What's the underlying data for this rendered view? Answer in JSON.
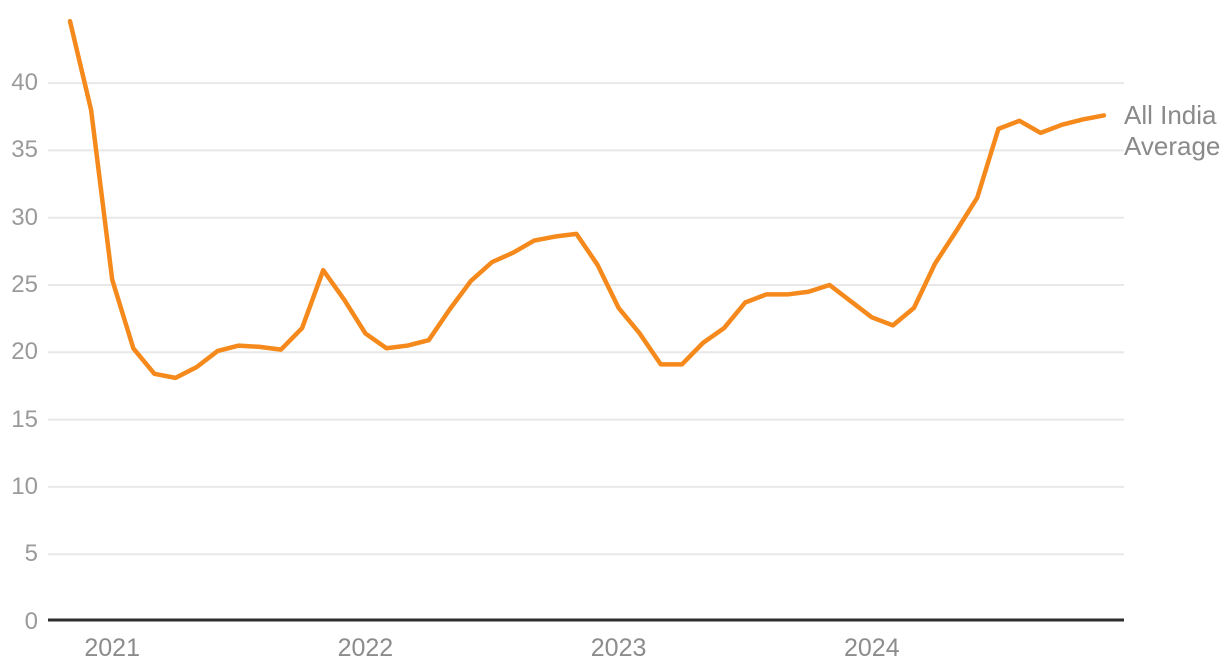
{
  "chart_data": {
    "type": "line",
    "title": "",
    "xlabel": "",
    "ylabel": "",
    "x": [
      "Nov 2020",
      "Dec 2020",
      "Jan 2021",
      "Feb 2021",
      "Mar 2021",
      "Apr 2021",
      "May 2021",
      "Jun 2021",
      "Jul 2021",
      "Aug 2021",
      "Sep 2021",
      "Oct 2021",
      "Nov 2021",
      "Dec 2021",
      "Jan 2022",
      "Feb 2022",
      "Mar 2022",
      "Apr 2022",
      "May 2022",
      "Jun 2022",
      "Jul 2022",
      "Aug 2022",
      "Sep 2022",
      "Oct 2022",
      "Nov 2022",
      "Dec 2022",
      "Jan 2023",
      "Feb 2023",
      "Mar 2023",
      "Apr 2023",
      "May 2023",
      "Jun 2023",
      "Jul 2023",
      "Aug 2023",
      "Sep 2023",
      "Oct 2023",
      "Nov 2023",
      "Dec 2023",
      "Jan 2024",
      "Feb 2024",
      "Mar 2024",
      "Apr 2024",
      "May 2024",
      "Jun 2024",
      "Jul 2024",
      "Aug 2024",
      "Sep 2024",
      "Oct 2024",
      "Nov 2024",
      "Dec 2024"
    ],
    "series": [
      {
        "name": "All India Average",
        "values": [
          44.6,
          38.0,
          25.4,
          20.3,
          18.4,
          18.1,
          18.9,
          20.1,
          20.5,
          20.4,
          20.2,
          21.8,
          26.1,
          23.9,
          21.4,
          20.3,
          20.5,
          20.9,
          23.2,
          25.3,
          26.7,
          27.4,
          28.3,
          28.6,
          28.8,
          26.5,
          23.3,
          21.4,
          19.1,
          19.1,
          20.7,
          21.8,
          23.7,
          24.3,
          24.3,
          24.5,
          25.0,
          23.8,
          22.6,
          22.0,
          23.3,
          26.6,
          29.0,
          31.5,
          36.6,
          37.2,
          36.3,
          36.9,
          37.3,
          37.6
        ]
      }
    ],
    "y_ticks": [
      0,
      5,
      10,
      15,
      20,
      25,
      30,
      35,
      40
    ],
    "x_tick_labels": [
      "2021",
      "2022",
      "2023",
      "2024"
    ],
    "ylim": [
      0,
      45
    ],
    "grid": "horizontal",
    "legend_position": "right-of-line-end",
    "annotation": {
      "text": "All India Average",
      "lines": [
        "All India",
        "Average"
      ]
    },
    "colors": {
      "line": "#F5891C",
      "grid": "#E8E8E8",
      "axis": "#2E2E2E",
      "tick_text": "#9A9A9A",
      "label_text": "#8A8A8A"
    }
  }
}
